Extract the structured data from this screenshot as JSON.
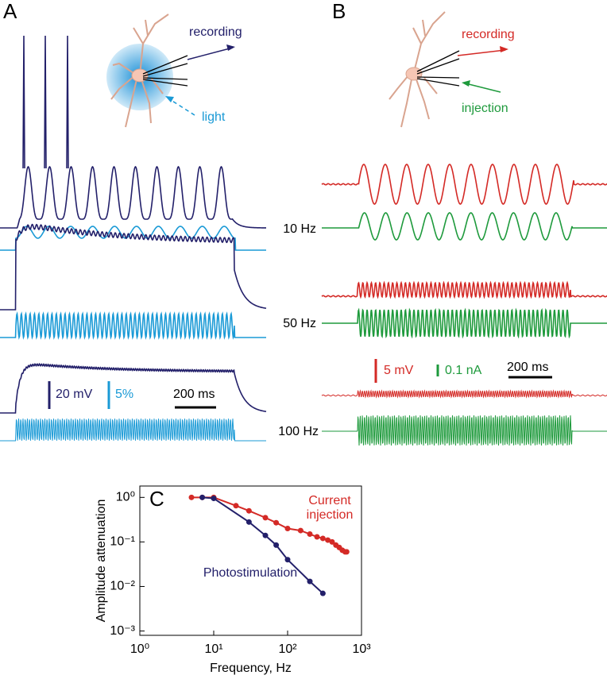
{
  "panel_labels": [
    "A",
    "B",
    "C"
  ],
  "panel_a": {
    "recording_label": "recording",
    "light_label": "light",
    "scale_bars": [
      "20 mV",
      "5%",
      "200 ms"
    ]
  },
  "panel_b": {
    "recording_label": "recording",
    "injection_label": "injection",
    "scale_bars": [
      "5 mV",
      "0.1 nA",
      "200 ms"
    ]
  },
  "frequency_labels": [
    "10 Hz",
    "50 Hz",
    "100 Hz"
  ],
  "chart_data": {
    "type": "line",
    "xlabel": "Frequency, Hz",
    "ylabel": "Amplitude attenuation",
    "xscale": "log",
    "yscale": "log",
    "xlim": [
      1,
      1000
    ],
    "ylim": [
      0.0008,
      1.8
    ],
    "xticks": [
      {
        "value": 1,
        "label": "10⁰"
      },
      {
        "value": 10,
        "label": "10¹"
      },
      {
        "value": 100,
        "label": "10²"
      },
      {
        "value": 1000,
        "label": "10³"
      }
    ],
    "yticks": [
      {
        "value": 0.001,
        "label": "10⁻³"
      },
      {
        "value": 0.01,
        "label": "10⁻²"
      },
      {
        "value": 0.1,
        "label": "10⁻¹"
      },
      {
        "value": 1,
        "label": "10⁰"
      }
    ],
    "series": [
      {
        "name": "Current injection",
        "color": "#d42a26",
        "x": [
          5,
          7,
          10,
          20,
          30,
          50,
          70,
          100,
          150,
          200,
          250,
          300,
          350,
          400,
          450,
          500,
          550,
          600,
          630
        ],
        "values": [
          1.0,
          1.0,
          1.0,
          0.65,
          0.5,
          0.35,
          0.27,
          0.2,
          0.18,
          0.15,
          0.13,
          0.12,
          0.11,
          0.1,
          0.085,
          0.075,
          0.065,
          0.06,
          0.06
        ]
      },
      {
        "name": "Photostimulation",
        "color": "#23206a",
        "x": [
          7,
          10,
          30,
          50,
          70,
          100,
          200,
          300
        ],
        "values": [
          1.0,
          0.95,
          0.28,
          0.14,
          0.085,
          0.04,
          0.013,
          0.007
        ]
      }
    ]
  }
}
